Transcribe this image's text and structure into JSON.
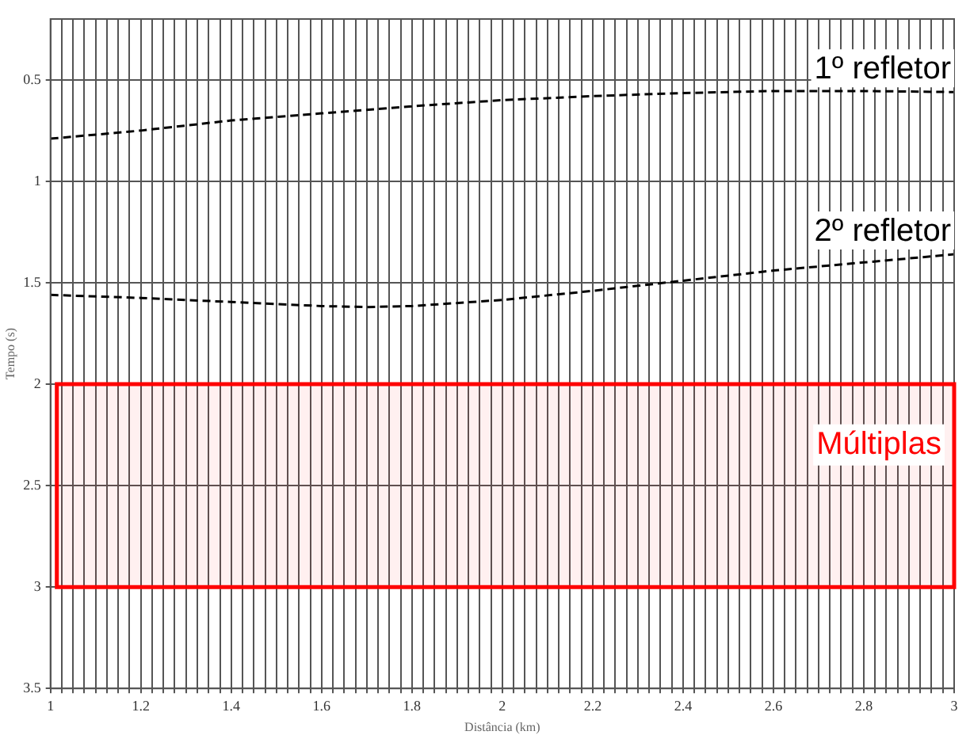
{
  "chart_data": {
    "type": "line",
    "xlabel": "Distância (km)",
    "ylabel": "Tempo (s)",
    "xlim": [
      1,
      3
    ],
    "ylim": [
      3.5,
      0.2
    ],
    "xticks": [
      1,
      {
        "value": 1.025,
        "label": null
      },
      {
        "value": 1.05,
        "label": null
      },
      {
        "value": 1.075,
        "label": null
      },
      {
        "value": 1.1,
        "label": null
      },
      {
        "value": 1.125,
        "label": null
      },
      {
        "value": 1.15,
        "label": null
      },
      {
        "value": 1.175,
        "label": null
      },
      1.2,
      {
        "value": 1.225,
        "label": null
      },
      {
        "value": 1.25,
        "label": null
      },
      {
        "value": 1.275,
        "label": null
      },
      {
        "value": 1.3,
        "label": null
      },
      {
        "value": 1.325,
        "label": null
      },
      {
        "value": 1.35,
        "label": null
      },
      {
        "value": 1.375,
        "label": null
      },
      1.4,
      {
        "value": 1.425,
        "label": null
      },
      {
        "value": 1.45,
        "label": null
      },
      {
        "value": 1.475,
        "label": null
      },
      {
        "value": 1.5,
        "label": null
      },
      {
        "value": 1.525,
        "label": null
      },
      {
        "value": 1.55,
        "label": null
      },
      {
        "value": 1.575,
        "label": null
      },
      1.6,
      {
        "value": 1.625,
        "label": null
      },
      {
        "value": 1.65,
        "label": null
      },
      {
        "value": 1.675,
        "label": null
      },
      {
        "value": 1.7,
        "label": null
      },
      {
        "value": 1.725,
        "label": null
      },
      {
        "value": 1.75,
        "label": null
      },
      {
        "value": 1.775,
        "label": null
      },
      1.8,
      {
        "value": 1.825,
        "label": null
      },
      {
        "value": 1.85,
        "label": null
      },
      {
        "value": 1.875,
        "label": null
      },
      {
        "value": 1.9,
        "label": null
      },
      {
        "value": 1.925,
        "label": null
      },
      {
        "value": 1.95,
        "label": null
      },
      {
        "value": 1.975,
        "label": null
      },
      2,
      {
        "value": 2.025,
        "label": null
      },
      {
        "value": 2.05,
        "label": null
      },
      {
        "value": 2.075,
        "label": null
      },
      {
        "value": 2.1,
        "label": null
      },
      {
        "value": 2.125,
        "label": null
      },
      {
        "value": 2.15,
        "label": null
      },
      {
        "value": 2.175,
        "label": null
      },
      2.2,
      {
        "value": 2.225,
        "label": null
      },
      {
        "value": 2.25,
        "label": null
      },
      {
        "value": 2.275,
        "label": null
      },
      {
        "value": 2.3,
        "label": null
      },
      {
        "value": 2.325,
        "label": null
      },
      {
        "value": 2.35,
        "label": null
      },
      {
        "value": 2.375,
        "label": null
      },
      2.4,
      {
        "value": 2.425,
        "label": null
      },
      {
        "value": 2.45,
        "label": null
      },
      {
        "value": 2.475,
        "label": null
      },
      {
        "value": 2.5,
        "label": null
      },
      {
        "value": 2.525,
        "label": null
      },
      {
        "value": 2.55,
        "label": null
      },
      {
        "value": 2.575,
        "label": null
      },
      2.6,
      {
        "value": 2.625,
        "label": null
      },
      {
        "value": 2.65,
        "label": null
      },
      {
        "value": 2.675,
        "label": null
      },
      {
        "value": 2.7,
        "label": null
      },
      {
        "value": 2.725,
        "label": null
      },
      {
        "value": 2.75,
        "label": null
      },
      {
        "value": 2.775,
        "label": null
      },
      2.8,
      {
        "value": 2.825,
        "label": null
      },
      {
        "value": 2.85,
        "label": null
      },
      {
        "value": 2.875,
        "label": null
      },
      {
        "value": 2.9,
        "label": null
      },
      {
        "value": 2.925,
        "label": null
      },
      {
        "value": 2.95,
        "label": null
      },
      {
        "value": 2.975,
        "label": null
      },
      3
    ],
    "yticks": [
      0.5,
      1,
      1.5,
      2,
      2.5,
      3,
      3.5
    ],
    "grid": true,
    "line_style": "dashed",
    "x": [
      1,
      1.2,
      1.4,
      1.6,
      1.8,
      2,
      2.2,
      2.4,
      2.6,
      2.8,
      3
    ],
    "series": [
      {
        "name": "1º refletor",
        "color": "#000000",
        "values": [
          0.79,
          0.75,
          0.7,
          0.665,
          0.63,
          0.6,
          0.58,
          0.565,
          0.555,
          0.555,
          0.56
        ]
      },
      {
        "name": "2º refletor",
        "color": "#000000",
        "x": [
          1,
          1.2,
          1.4,
          1.6,
          1.7,
          1.8,
          2,
          2.2,
          2.4,
          2.6,
          2.8,
          3
        ],
        "values": [
          1.56,
          1.575,
          1.595,
          1.615,
          1.62,
          1.615,
          1.585,
          1.54,
          1.49,
          1.44,
          1.4,
          1.36
        ]
      }
    ],
    "bands": [
      {
        "axis": "y",
        "from": 2,
        "to": 3,
        "label": "Múltiplas",
        "color": "#ff0000"
      }
    ]
  }
}
